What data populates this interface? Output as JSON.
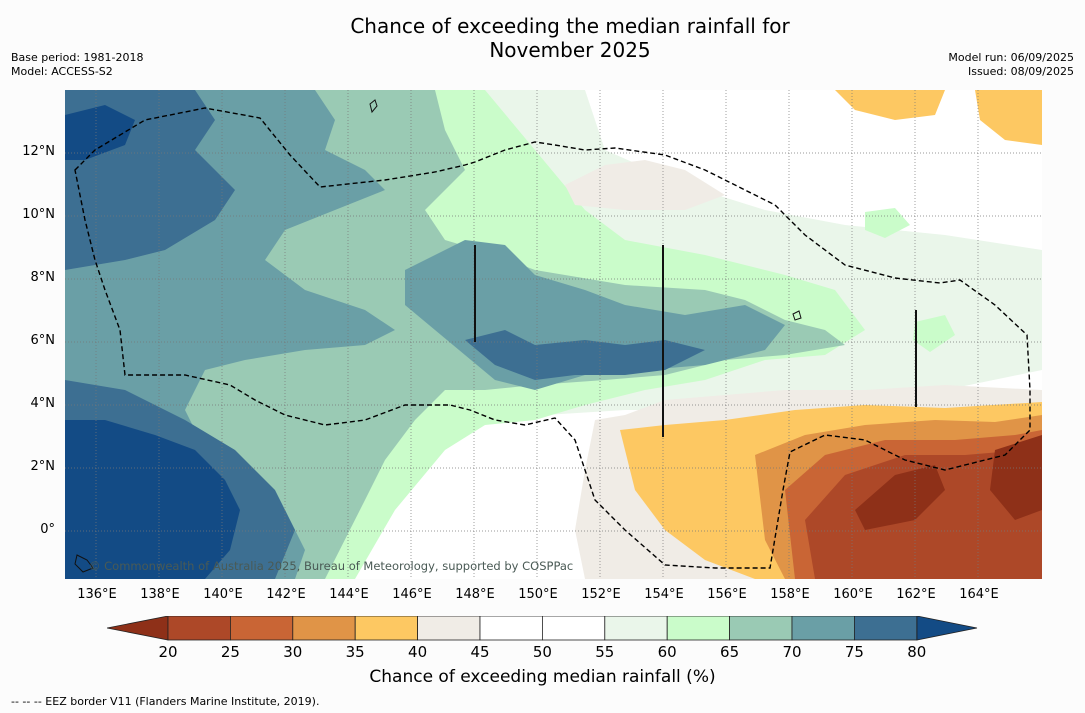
{
  "title": "Chance of exceeding the median rainfall for\nNovember 2025",
  "meta": {
    "base_period": "Base period: 1981-2018",
    "model": "Model: ACCESS-S2",
    "model_run": "Model run: 06/09/2025",
    "issued": "Issued: 08/09/2025"
  },
  "axes": {
    "y_labels": [
      "12°N",
      "10°N",
      "8°N",
      "6°N",
      "4°N",
      "2°N",
      "0°"
    ],
    "x_labels": [
      "136°E",
      "138°E",
      "140°E",
      "142°E",
      "144°E",
      "146°E",
      "148°E",
      "150°E",
      "152°E",
      "154°E",
      "156°E",
      "158°E",
      "160°E",
      "162°E",
      "164°E"
    ]
  },
  "copyright": "© Commonwealth of Australia 2025, Bureau of Meteorology, supported by COSPPac",
  "colorbar": {
    "label": "Chance of exceeding median rainfall (%)",
    "ticks": [
      "20",
      "25",
      "30",
      "35",
      "40",
      "45",
      "50",
      "55",
      "60",
      "65",
      "70",
      "75",
      "80"
    ],
    "colors": {
      "below_20": "#8e3018",
      "20_25": "#ad4828",
      "25_30": "#c96535",
      "30_35": "#e09447",
      "35_40": "#fdc862",
      "40_45": "#f0ece6",
      "45_50": "#ffffff",
      "50_55": "#ffffff",
      "55_60": "#eaf6ea",
      "60_65": "#cafcca",
      "65_70": "#9acab4",
      "70_75": "#6a9fa6",
      "75_80": "#3d6f92",
      "above_80": "#134b85"
    }
  },
  "footnote": "--  --  -- EEZ border V11 (Flanders Marine Institute, 2019)."
}
